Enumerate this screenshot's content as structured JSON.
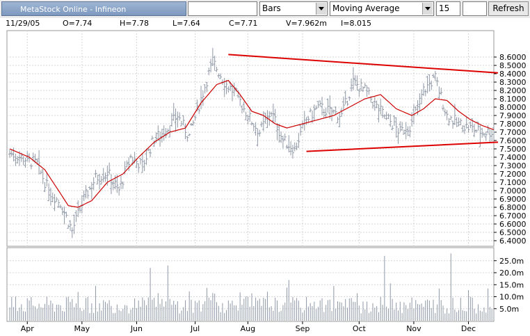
{
  "toolbar": {
    "title": "MetaStock Online - Infineon",
    "symbol_value": "",
    "chart_style": "Bars",
    "indicator": "Moving Average",
    "period": "15",
    "extra_value": "",
    "refresh_label": "Refresh"
  },
  "info": {
    "date": "11/29/05",
    "open": "O=7.74",
    "high": "H=7.78",
    "low": "L=7.64",
    "close": "C=7.71",
    "volume": "V=7.962m",
    "interest": "I=8.015"
  },
  "colors": {
    "bars": "#8f98a6",
    "moving_average": "#cc0000",
    "trendline": "#dd0000",
    "grid": "#d6d6d6"
  },
  "chart_data": [
    {
      "type": "bar",
      "chart_style": "ohlc",
      "title": "",
      "x_tick_labels": [
        "Apr",
        "May",
        "Jun",
        "Jul",
        "Aug",
        "Sep",
        "Oct",
        "Nov",
        "Dec"
      ],
      "y_tick_labels": [
        "6.4000",
        "6.5000",
        "6.6000",
        "6.7000",
        "6.8000",
        "6.9000",
        "7.0000",
        "7.1000",
        "7.2000",
        "7.3000",
        "7.4000",
        "7.5000",
        "7.6000",
        "7.7000",
        "7.8000",
        "7.9000",
        "8.0000",
        "8.1000",
        "8.2000",
        "8.3000",
        "8.4000",
        "8.5000",
        "8.6000"
      ],
      "ylim": [
        6.3,
        8.7
      ],
      "grid": true,
      "price_anchors": [
        [
          0,
          7.45
        ],
        [
          8,
          7.38
        ],
        [
          14,
          7.32
        ],
        [
          20,
          7.0
        ],
        [
          26,
          6.85
        ],
        [
          32,
          6.52
        ],
        [
          38,
          6.9
        ],
        [
          44,
          7.15
        ],
        [
          50,
          7.22
        ],
        [
          56,
          7.0
        ],
        [
          62,
          7.4
        ],
        [
          68,
          7.3
        ],
        [
          74,
          7.62
        ],
        [
          80,
          7.72
        ],
        [
          86,
          7.9
        ],
        [
          92,
          7.65
        ],
        [
          98,
          8.1
        ],
        [
          104,
          8.55
        ],
        [
          110,
          8.3
        ],
        [
          116,
          8.15
        ],
        [
          122,
          7.9
        ],
        [
          128,
          7.7
        ],
        [
          134,
          7.95
        ],
        [
          140,
          7.6
        ],
        [
          146,
          7.5
        ],
        [
          152,
          7.85
        ],
        [
          158,
          8.0
        ],
        [
          164,
          7.95
        ],
        [
          170,
          7.9
        ],
        [
          176,
          8.3
        ],
        [
          182,
          8.2
        ],
        [
          188,
          8.0
        ],
        [
          194,
          7.85
        ],
        [
          200,
          7.7
        ],
        [
          206,
          7.8
        ],
        [
          212,
          8.2
        ],
        [
          218,
          8.35
        ],
        [
          224,
          7.9
        ],
        [
          230,
          7.8
        ],
        [
          236,
          7.75
        ],
        [
          242,
          7.7
        ],
        [
          248,
          7.71
        ]
      ],
      "moving_average": {
        "name": "Moving Average",
        "period": 15,
        "points": [
          [
            0,
            7.5
          ],
          [
            10,
            7.4
          ],
          [
            18,
            7.25
          ],
          [
            25,
            7.0
          ],
          [
            30,
            6.82
          ],
          [
            35,
            6.8
          ],
          [
            42,
            6.88
          ],
          [
            50,
            7.1
          ],
          [
            58,
            7.2
          ],
          [
            66,
            7.4
          ],
          [
            74,
            7.58
          ],
          [
            82,
            7.7
          ],
          [
            90,
            7.75
          ],
          [
            98,
            8.05
          ],
          [
            106,
            8.27
          ],
          [
            112,
            8.32
          ],
          [
            118,
            8.15
          ],
          [
            124,
            7.95
          ],
          [
            130,
            7.9
          ],
          [
            136,
            7.8
          ],
          [
            142,
            7.75
          ],
          [
            150,
            7.8
          ],
          [
            158,
            7.85
          ],
          [
            166,
            7.9
          ],
          [
            174,
            8.0
          ],
          [
            182,
            8.1
          ],
          [
            190,
            8.15
          ],
          [
            198,
            7.98
          ],
          [
            206,
            7.9
          ],
          [
            212,
            7.98
          ],
          [
            218,
            8.1
          ],
          [
            224,
            8.08
          ],
          [
            230,
            7.95
          ],
          [
            236,
            7.85
          ],
          [
            242,
            7.78
          ],
          [
            248,
            7.73
          ]
        ]
      },
      "trendlines": [
        {
          "from": [
            112,
            8.63
          ],
          "to": [
            258,
            8.41
          ]
        },
        {
          "from": [
            152,
            7.47
          ],
          "to": [
            255,
            7.58
          ]
        }
      ],
      "bar_count": 249
    },
    {
      "type": "bar",
      "title": "",
      "y_tick_labels": [
        "5.0m",
        "10.0m",
        "15.0m",
        "20.0m",
        "25.0m"
      ],
      "ylim": [
        0,
        30
      ],
      "volume_spikes": [
        [
          72,
          22.0
        ],
        [
          81,
          23.0
        ],
        [
          192,
          27.0
        ],
        [
          226,
          28.0
        ]
      ]
    }
  ]
}
